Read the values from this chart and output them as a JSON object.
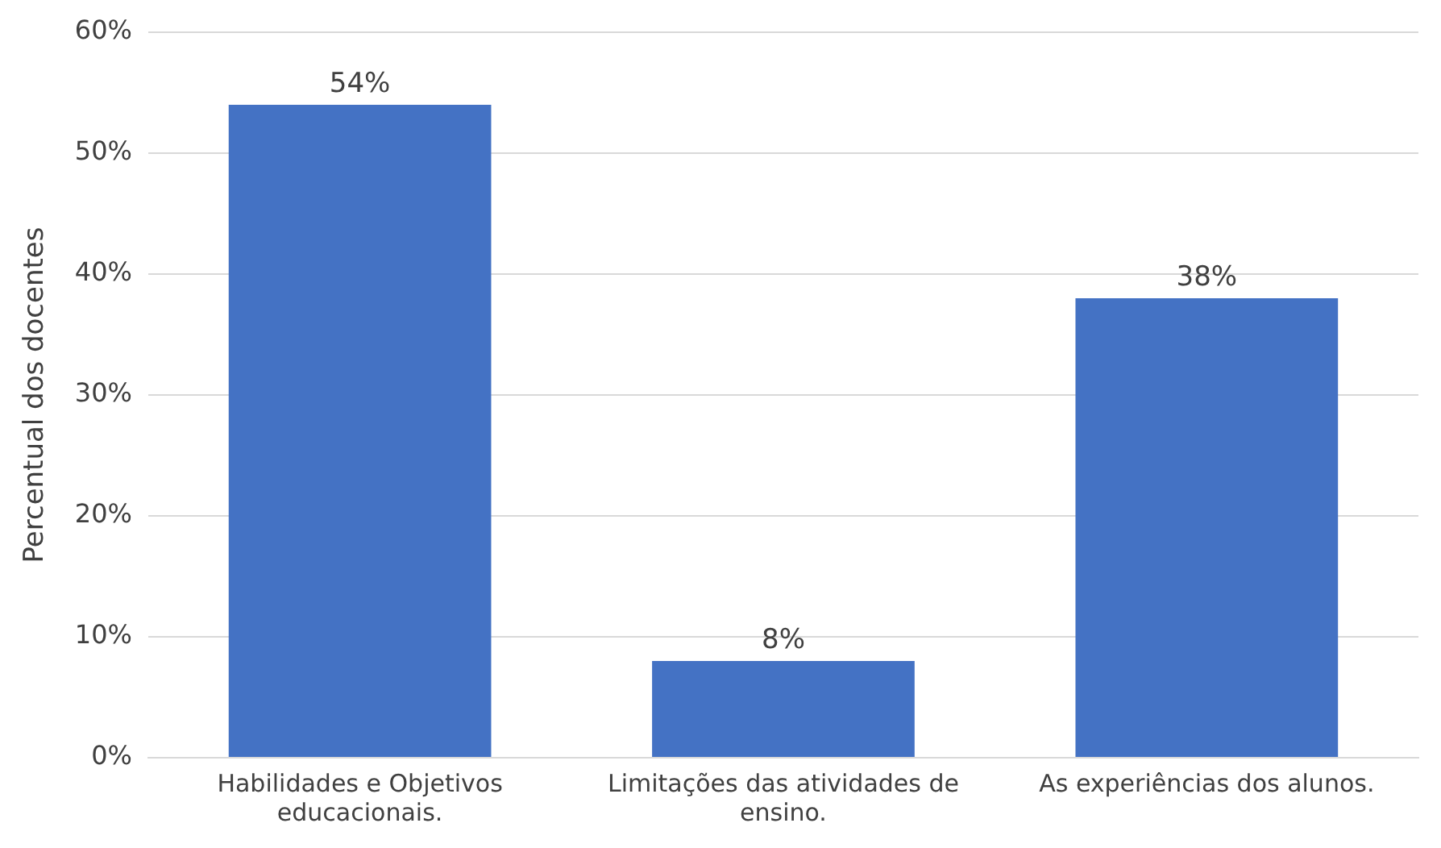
{
  "chart_data": {
    "type": "bar",
    "ylabel": "Percentual dos docentes",
    "categories": [
      "Habilidades e Objetivos educacionais.",
      "Limitações das atividades de ensino.",
      "As experiências dos alunos."
    ],
    "values": [
      54,
      8,
      38
    ],
    "color": "#4472c4",
    "value_labels": [
      "54%",
      "8%",
      "38%"
    ],
    "ylim": [
      0,
      60
    ],
    "yticks": [
      {
        "value": 0,
        "label": "0%"
      },
      {
        "value": 10,
        "label": "10%"
      },
      {
        "value": 20,
        "label": "20%"
      },
      {
        "value": 30,
        "label": "30%"
      },
      {
        "value": 40,
        "label": "40%"
      },
      {
        "value": 50,
        "label": "50%"
      },
      {
        "value": 60,
        "label": "60%"
      }
    ],
    "grid": "y",
    "legend": false
  }
}
